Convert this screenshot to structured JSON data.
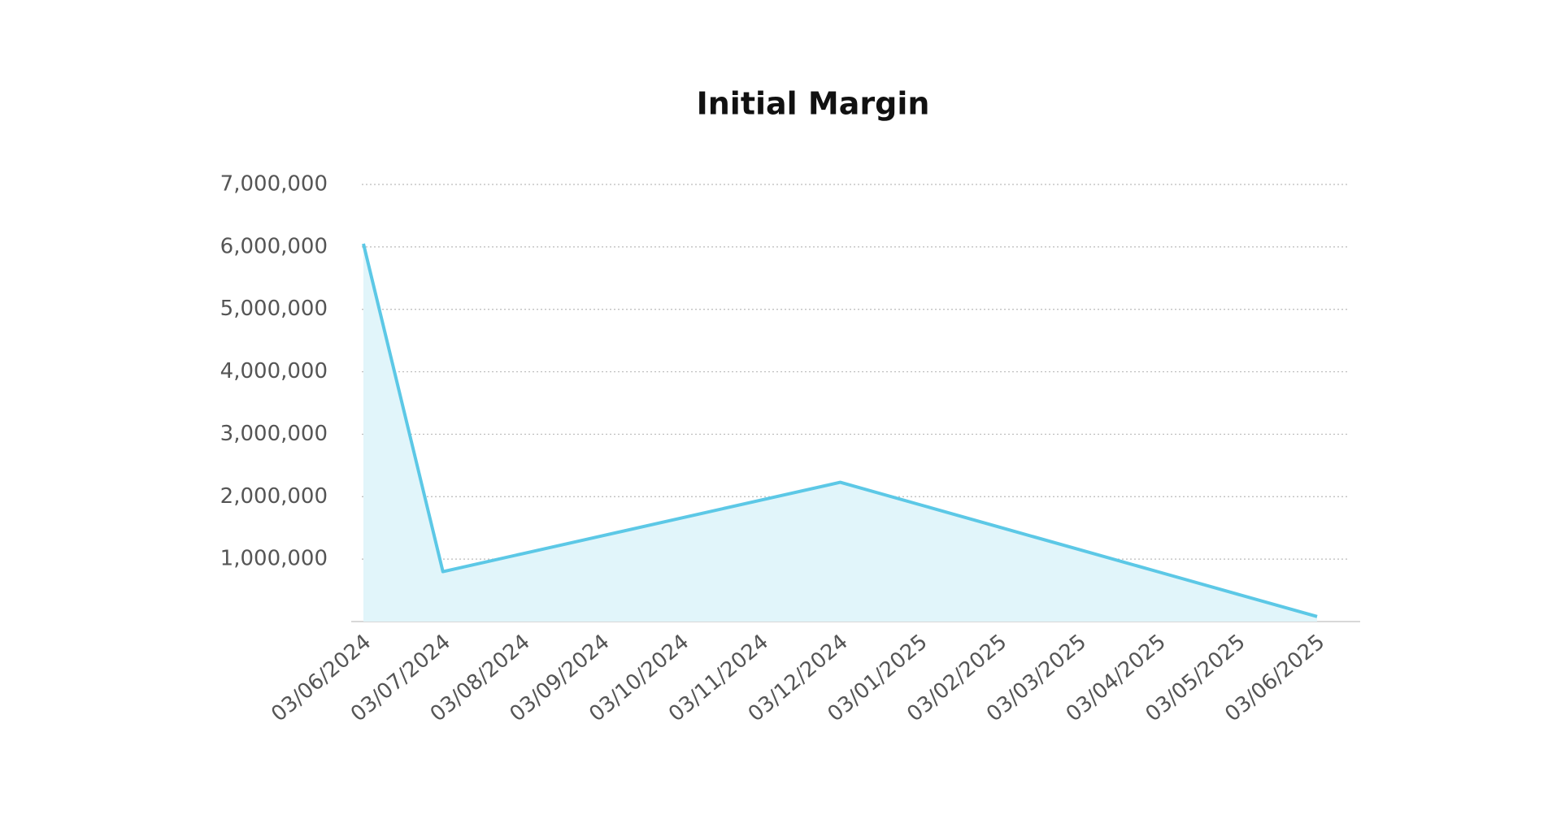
{
  "chart_data": {
    "type": "area",
    "title": "Initial Margin",
    "x": [
      "03/06/2024",
      "03/07/2024",
      "03/08/2024",
      "03/09/2024",
      "03/10/2024",
      "03/11/2024",
      "03/12/2024",
      "03/01/2025",
      "03/02/2025",
      "03/03/2025",
      "03/04/2025",
      "03/05/2025",
      "03/06/2025"
    ],
    "values": [
      6050000,
      800000,
      1086000,
      1372000,
      1658000,
      1944000,
      2230000,
      1872000,
      1513000,
      1155000,
      797000,
      438000,
      80000
    ],
    "color": "#5cc8e6",
    "fill_color": "#e1f5fa",
    "ylim": [
      0,
      7000000
    ],
    "yticks": [
      {
        "value": 1000000,
        "label": "1,000,000"
      },
      {
        "value": 2000000,
        "label": "2,000,000"
      },
      {
        "value": 3000000,
        "label": "3,000,000"
      },
      {
        "value": 4000000,
        "label": "4,000,000"
      },
      {
        "value": 5000000,
        "label": "5,000,000"
      },
      {
        "value": 6000000,
        "label": "6,000,000"
      },
      {
        "value": 7000000,
        "label": "7,000,000"
      }
    ],
    "grid": true
  }
}
